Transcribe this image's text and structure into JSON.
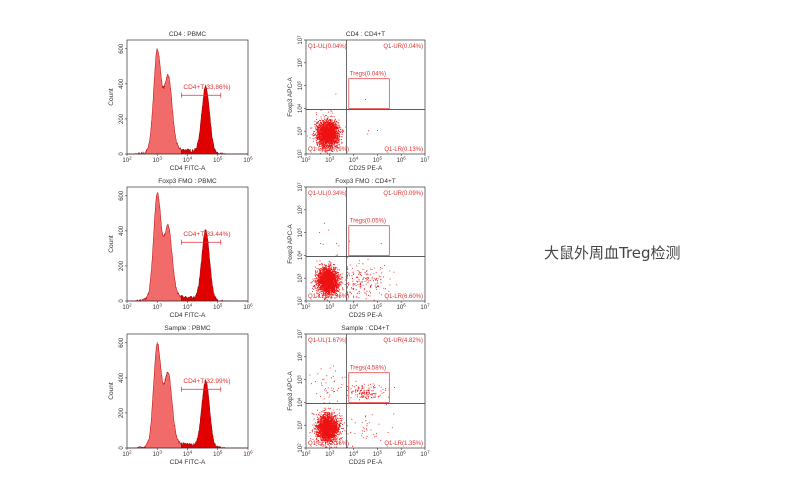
{
  "side_caption": "大鼠外周血Treg检测",
  "colors": {
    "light_fill": "#f26b6b",
    "dark_fill": "#e00000",
    "gate": "#e03030",
    "dots": "#ee1111",
    "axis": "#333333",
    "quad_line": "#444444"
  },
  "chart_data": [
    {
      "type": "histogram",
      "title": "CD4 : PBMC",
      "xlabel": "CD4 FITC-A",
      "ylabel": "Count",
      "x_scale": "log",
      "xlim": [
        100,
        1000000
      ],
      "ylim": [
        0,
        650
      ],
      "yticks": [
        0,
        200,
        400,
        600
      ],
      "xtick_exponents": [
        2,
        3,
        4,
        5,
        6
      ],
      "peaks": [
        {
          "x": 1000,
          "count": 540
        },
        {
          "x": 2300,
          "count": 390
        },
        {
          "x": 40000,
          "count": 380
        }
      ],
      "gate": {
        "name": "CD4+T",
        "percent": "33.86%",
        "range": [
          6300,
          126000
        ]
      }
    },
    {
      "type": "histogram",
      "title": "Foxp3 FMO : PBMC",
      "xlabel": "CD4 FITC-A",
      "ylabel": "Count",
      "x_scale": "log",
      "xlim": [
        100,
        1000000
      ],
      "ylim": [
        0,
        650
      ],
      "yticks": [
        0,
        200,
        400,
        600
      ],
      "xtick_exponents": [
        2,
        3,
        4,
        5,
        6
      ],
      "peaks": [
        {
          "x": 1000,
          "count": 560
        },
        {
          "x": 2300,
          "count": 370
        },
        {
          "x": 40000,
          "count": 400
        }
      ],
      "gate": {
        "name": "CD4+T",
        "percent": "33.44%",
        "range": [
          6300,
          126000
        ]
      }
    },
    {
      "type": "histogram",
      "title": "Sample : PBMC",
      "xlabel": "CD4 FITC-A",
      "ylabel": "Count",
      "x_scale": "log",
      "xlim": [
        100,
        1000000
      ],
      "ylim": [
        0,
        650
      ],
      "yticks": [
        0,
        200,
        400,
        600
      ],
      "xtick_exponents": [
        2,
        3,
        4,
        5,
        6
      ],
      "peaks": [
        {
          "x": 1000,
          "count": 540
        },
        {
          "x": 2300,
          "count": 370
        },
        {
          "x": 40000,
          "count": 380
        }
      ],
      "gate": {
        "name": "CD4+T",
        "percent": "32.99%",
        "range": [
          6300,
          126000
        ]
      }
    },
    {
      "type": "scatter",
      "title": "CD4 : CD4+T",
      "xlabel": "CD25 PE-A",
      "ylabel": "Foxp3 APC-A",
      "x_scale": "log",
      "y_scale": "log",
      "xlim": [
        100,
        10000000
      ],
      "ylim": [
        100,
        10000000
      ],
      "xtick_exponents": [
        2,
        3,
        4,
        5,
        6,
        7
      ],
      "ytick_exponents": [
        2,
        3,
        4,
        5,
        6,
        7
      ],
      "quadrant_threshold": {
        "x": 5000,
        "y": 9000
      },
      "quadrants": {
        "UL": "Q1-UL(0.04%)",
        "UR": "Q1-UR(0.04%)",
        "LL": "Q1-LL(99.79%)",
        "LR": "Q1-LR(0.13%)"
      },
      "gate": {
        "label": "Tregs(0.04%)",
        "x": [
          6300,
          316000
        ],
        "y": [
          10000,
          200000
        ]
      },
      "populations": {
        "LL": 99.79,
        "LR": 0.13,
        "UL": 0.04,
        "UR": 0.04
      }
    },
    {
      "type": "scatter",
      "title": "Foxp3 FMO : CD4+T",
      "xlabel": "CD25 PE-A",
      "ylabel": "Foxp3 APC-A",
      "x_scale": "log",
      "y_scale": "log",
      "xlim": [
        100,
        10000000
      ],
      "ylim": [
        100,
        10000000
      ],
      "xtick_exponents": [
        2,
        3,
        4,
        5,
        6,
        7
      ],
      "ytick_exponents": [
        2,
        3,
        4,
        5,
        6,
        7
      ],
      "quadrant_threshold": {
        "x": 5000,
        "y": 9000
      },
      "quadrants": {
        "UL": "Q1-UL(0.34%)",
        "UR": "Q1-UR(0.09%)",
        "LL": "Q1-LL(92.96%)",
        "LR": "Q1-LR(6.60%)"
      },
      "gate": {
        "label": "Tregs(0.05%)",
        "x": [
          6300,
          316000
        ],
        "y": [
          10000,
          200000
        ]
      },
      "populations": {
        "LL": 92.96,
        "LR": 6.6,
        "UL": 0.34,
        "UR": 0.09
      }
    },
    {
      "type": "scatter",
      "title": "Sample : CD4+T",
      "xlabel": "CD25 PE-A",
      "ylabel": "Foxp3 APC-A",
      "x_scale": "log",
      "y_scale": "log",
      "xlim": [
        100,
        10000000
      ],
      "ylim": [
        100,
        10000000
      ],
      "xtick_exponents": [
        2,
        3,
        4,
        5,
        6,
        7
      ],
      "ytick_exponents": [
        2,
        3,
        4,
        5,
        6,
        7
      ],
      "quadrant_threshold": {
        "x": 5000,
        "y": 9000
      },
      "quadrants": {
        "UL": "Q1-UL(1.67%)",
        "UR": "Q1-UR(4.82%)",
        "LL": "Q1-LL(92.16%)",
        "LR": "Q1-LR(1.35%)"
      },
      "gate": {
        "label": "Tregs(4.58%)",
        "x": [
          6300,
          316000
        ],
        "y": [
          10000,
          200000
        ]
      },
      "populations": {
        "LL": 92.16,
        "LR": 1.35,
        "UL": 1.67,
        "UR": 4.82
      }
    }
  ]
}
